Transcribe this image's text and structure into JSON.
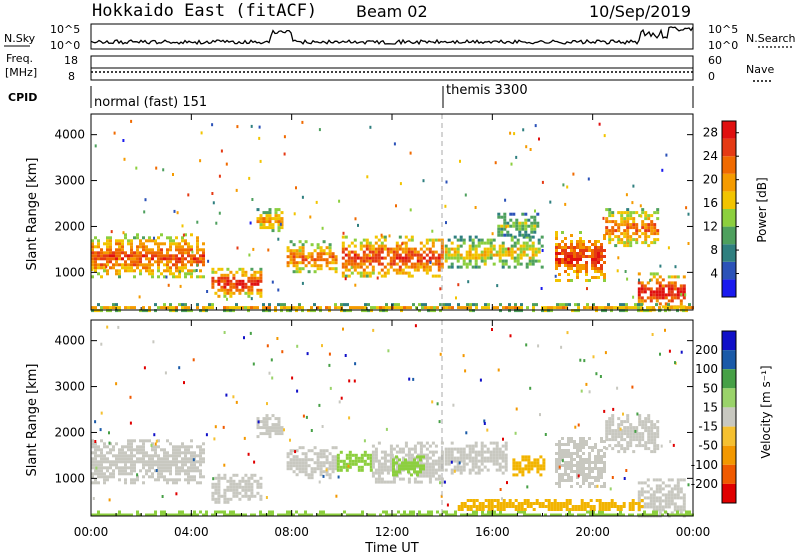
{
  "header": {
    "title": "Hokkaido East (fitACF)",
    "beam": "Beam 02",
    "date": "10/Sep/2019"
  },
  "strips": {
    "nsky_label": "N.Sky",
    "nsearch_label": "N.Search",
    "nsky_ticks": [
      "10^5",
      "10^0"
    ],
    "nsearch_ticks": [
      "10^5",
      "10^0"
    ],
    "freq_label_1": "Freq.",
    "freq_label_2": "[MHz]",
    "freq_ticks": [
      "18",
      "8"
    ],
    "nave_label": "Nave",
    "nave_ticks": [
      "60",
      "0"
    ],
    "cpid_label": "CPID",
    "cpid_segments": [
      {
        "label": "normal (fast) 151",
        "start": "00:00"
      },
      {
        "label": "themis 3300",
        "start": "14:05"
      }
    ]
  },
  "chart_data": [
    {
      "type": "heatmap",
      "title": "",
      "xlabel": "Time UT",
      "ylabel": "Slant Range [km]",
      "x_ticks": [
        "00:00",
        "04:00",
        "08:00",
        "12:00",
        "16:00",
        "20:00",
        "00:00"
      ],
      "xlim_hours": [
        0,
        24
      ],
      "y_ticks": [
        1000,
        2000,
        3000,
        4000
      ],
      "ylim": [
        180,
        4450
      ],
      "colorbar": {
        "label": "Power [dB]",
        "ticks": [
          4,
          8,
          12,
          16,
          20,
          24,
          28
        ],
        "range": [
          0,
          30
        ],
        "colors": [
          "#1a1aee",
          "#2b52b8",
          "#2f7f7f",
          "#4ea05e",
          "#8ccf3e",
          "#f2c400",
          "#f59b00",
          "#f06a00",
          "#e53a14",
          "#e01010"
        ]
      },
      "regions": [
        {
          "t0": 0.0,
          "t1": 4.5,
          "r0": 900,
          "r1": 1850,
          "level": 24
        },
        {
          "t0": 4.8,
          "t1": 6.8,
          "r0": 500,
          "r1": 1100,
          "level": 27
        },
        {
          "t0": 6.6,
          "t1": 7.6,
          "r0": 1900,
          "r1": 2400,
          "level": 20
        },
        {
          "t0": 7.8,
          "t1": 9.8,
          "r0": 1000,
          "r1": 1700,
          "level": 22
        },
        {
          "t0": 10.0,
          "t1": 14.0,
          "r0": 900,
          "r1": 1800,
          "level": 25
        },
        {
          "t0": 14.1,
          "t1": 18.0,
          "r0": 1100,
          "r1": 1800,
          "level": 16
        },
        {
          "t0": 16.2,
          "t1": 17.8,
          "r0": 1800,
          "r1": 2300,
          "level": 12
        },
        {
          "t0": 18.5,
          "t1": 20.5,
          "r0": 800,
          "r1": 1900,
          "level": 26
        },
        {
          "t0": 20.5,
          "t1": 22.6,
          "r0": 1600,
          "r1": 2400,
          "level": 22
        },
        {
          "t0": 21.8,
          "t1": 23.6,
          "r0": 180,
          "r1": 1000,
          "level": 28
        },
        {
          "t0": 0.0,
          "t1": 24.0,
          "r0": 180,
          "r1": 330,
          "level": 18
        }
      ]
    },
    {
      "type": "heatmap",
      "title": "",
      "xlabel": "Time UT",
      "ylabel": "Slant Range [km]",
      "x_ticks": [
        "00:00",
        "04:00",
        "08:00",
        "12:00",
        "16:00",
        "20:00",
        "00:00"
      ],
      "xlim_hours": [
        0,
        24
      ],
      "y_ticks": [
        1000,
        2000,
        3000,
        4000
      ],
      "ylim": [
        180,
        4450
      ],
      "colorbar": {
        "label": "Velocity [m s⁻¹]",
        "ticks": [
          "200",
          "100",
          "50",
          "15",
          "-15",
          "-50",
          "-100",
          "-200"
        ],
        "range": [
          -250,
          250
        ],
        "colors": [
          "#e00000",
          "#f05a00",
          "#f39800",
          "#f5c030",
          "#c8c8c0",
          "#9ad36a",
          "#46a046",
          "#1a5aa8",
          "#1010c8"
        ]
      },
      "regions": [
        {
          "t0": 0.0,
          "t1": 4.5,
          "r0": 900,
          "r1": 1850,
          "class": "ground"
        },
        {
          "t0": 4.8,
          "t1": 6.8,
          "r0": 500,
          "r1": 1100,
          "class": "ground"
        },
        {
          "t0": 6.6,
          "t1": 7.6,
          "r0": 1900,
          "r1": 2400,
          "class": "ground"
        },
        {
          "t0": 7.8,
          "t1": 9.8,
          "r0": 1000,
          "r1": 1700,
          "class": "ground"
        },
        {
          "t0": 9.8,
          "t1": 11.2,
          "r0": 1200,
          "r1": 1600,
          "class": "positive"
        },
        {
          "t0": 11.2,
          "t1": 14.0,
          "r0": 900,
          "r1": 1800,
          "class": "ground"
        },
        {
          "t0": 12.0,
          "t1": 13.2,
          "r0": 1100,
          "r1": 1500,
          "class": "positive"
        },
        {
          "t0": 14.1,
          "t1": 16.5,
          "r0": 1100,
          "r1": 1800,
          "class": "ground"
        },
        {
          "t0": 16.8,
          "t1": 18.0,
          "r0": 1100,
          "r1": 1500,
          "class": "negative"
        },
        {
          "t0": 18.5,
          "t1": 20.5,
          "r0": 800,
          "r1": 1900,
          "class": "ground"
        },
        {
          "t0": 20.5,
          "t1": 22.6,
          "r0": 1600,
          "r1": 2400,
          "class": "ground"
        },
        {
          "t0": 21.8,
          "t1": 23.6,
          "r0": 180,
          "r1": 1000,
          "class": "ground"
        },
        {
          "t0": 0.0,
          "t1": 24.0,
          "r0": 180,
          "r1": 300,
          "class": "positive"
        },
        {
          "t0": 14.5,
          "t1": 22.0,
          "r0": 300,
          "r1": 550,
          "class": "negative"
        }
      ]
    }
  ]
}
